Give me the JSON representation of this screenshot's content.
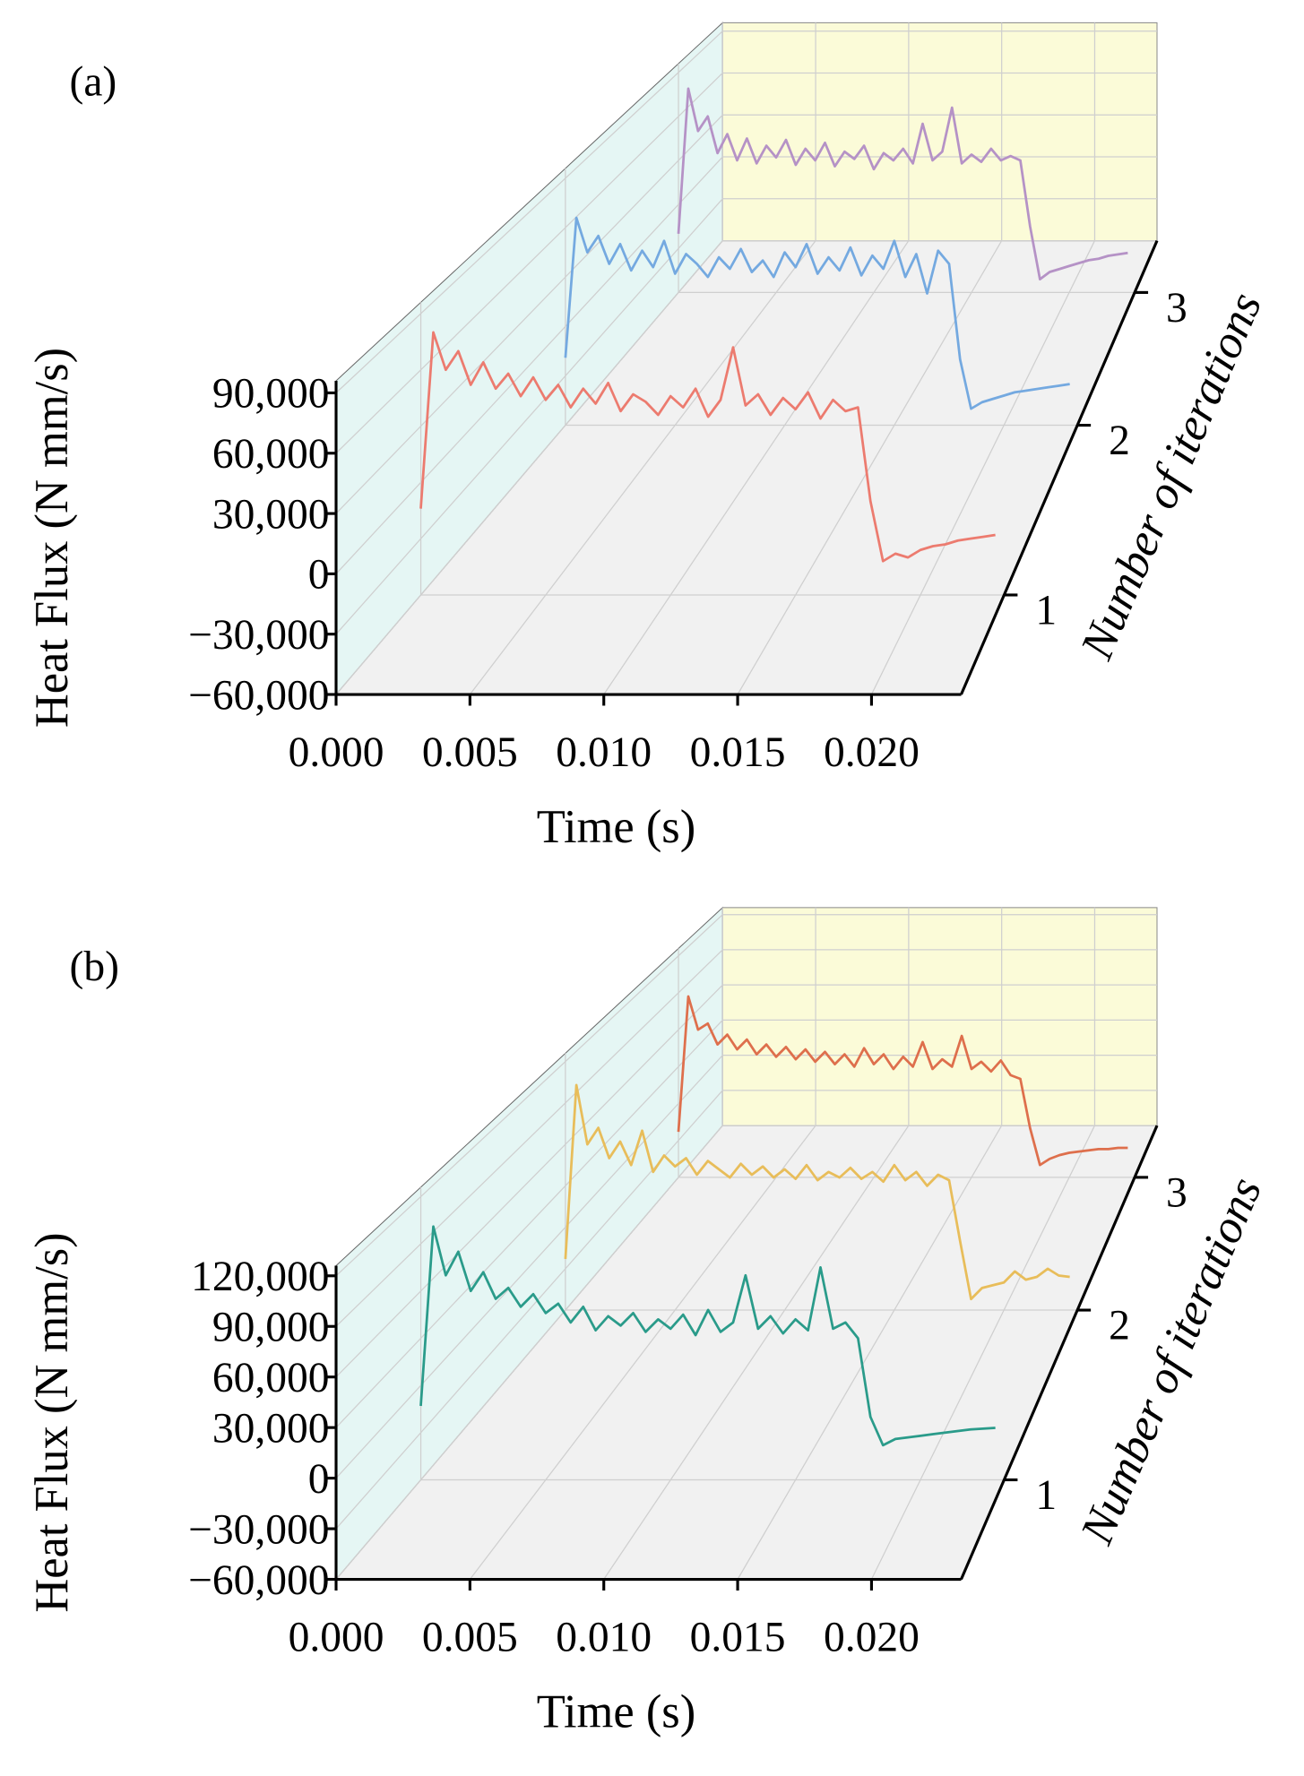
{
  "chart_data": [
    {
      "type": "line3d",
      "panel_label": "(a)",
      "ylabel": "Heat Flux (N mm/s)",
      "xlabel": "Time (s)",
      "zlabel": "Number of iterations",
      "x": [
        0,
        0.0005,
        0.001,
        0.0015,
        0.002,
        0.0025,
        0.003,
        0.0035,
        0.004,
        0.0045,
        0.005,
        0.0055,
        0.006,
        0.0065,
        0.007,
        0.0075,
        0.008,
        0.0085,
        0.009,
        0.0095,
        0.01,
        0.0105,
        0.011,
        0.0115,
        0.012,
        0.0125,
        0.013,
        0.0135,
        0.014,
        0.0145,
        0.015,
        0.0155,
        0.016,
        0.0165,
        0.017,
        0.0175,
        0.018,
        0.0185,
        0.019,
        0.0195,
        0.02,
        0.0205,
        0.021,
        0.0215,
        0.022,
        0.0225,
        0.023
      ],
      "series": [
        {
          "z": 1,
          "color": "#ec7b6f",
          "values": [
            -14000,
            80000,
            60000,
            70000,
            52000,
            64000,
            50000,
            58000,
            46000,
            56000,
            44000,
            52000,
            40000,
            50000,
            42000,
            53000,
            38000,
            47000,
            43000,
            36000,
            46000,
            40000,
            50000,
            35000,
            44000,
            72000,
            41000,
            47000,
            36000,
            45000,
            39000,
            48000,
            34000,
            44000,
            38000,
            40000,
            -10000,
            -42000,
            -38000,
            -40000,
            -36000,
            -34000,
            -33000,
            -31000,
            -30000,
            -29000,
            -28000
          ]
        },
        {
          "z": 2,
          "color": "#74a9e0",
          "values": [
            -19000,
            66000,
            45000,
            55000,
            38000,
            50000,
            34000,
            46000,
            36000,
            52000,
            32000,
            44000,
            38000,
            30000,
            42000,
            35000,
            47000,
            33000,
            40000,
            30000,
            45000,
            36000,
            50000,
            32000,
            42000,
            34000,
            48000,
            31000,
            43000,
            35000,
            52000,
            30000,
            44000,
            20000,
            46000,
            38000,
            -20000,
            -50000,
            -46000,
            -44000,
            -42000,
            -40000,
            -39000,
            -38000,
            -37000,
            -36000,
            -35000
          ]
        },
        {
          "z": 3,
          "color": "#b592c6",
          "values": [
            -20000,
            79000,
            50000,
            60000,
            35000,
            48000,
            30000,
            45000,
            28000,
            40000,
            32000,
            44000,
            27000,
            38000,
            30000,
            42000,
            26000,
            36000,
            31000,
            40000,
            24000,
            35000,
            30000,
            38000,
            28000,
            55000,
            30000,
            36000,
            66000,
            28000,
            34000,
            29000,
            38000,
            30000,
            33000,
            30000,
            -15000,
            -51000,
            -46000,
            -44000,
            -42000,
            -40000,
            -38000,
            -37000,
            -35000,
            -34000,
            -33000
          ]
        }
      ],
      "xlim": [
        0,
        0.02335
      ],
      "xticks": [
        {
          "value": 0,
          "label": "0.000"
        },
        0.005,
        {
          "value": 0.01,
          "label": "0.010"
        },
        0.015,
        {
          "value": 0.02,
          "label": "0.020"
        }
      ],
      "ylim": [
        -60000,
        96000
      ],
      "yticks": [
        {
          "value": -60000,
          "label": "−60,000"
        },
        {
          "value": -30000,
          "label": "−30,000"
        },
        0,
        {
          "value": 30000,
          "label": "30,000"
        },
        {
          "value": 60000,
          "label": "60,000"
        },
        {
          "value": 90000,
          "label": "90,000"
        }
      ],
      "zlim": [
        0.52,
        3.46
      ],
      "zticks": [
        1,
        2,
        3
      ],
      "grid": true
    },
    {
      "type": "line3d",
      "panel_label": "(b)",
      "ylabel": "Heat Flux (N mm/s)",
      "xlabel": "Time (s)",
      "zlabel": "Number of iterations",
      "x": [
        0,
        0.0005,
        0.001,
        0.0015,
        0.002,
        0.0025,
        0.003,
        0.0035,
        0.004,
        0.0045,
        0.005,
        0.0055,
        0.006,
        0.0065,
        0.007,
        0.0075,
        0.008,
        0.0085,
        0.009,
        0.0095,
        0.01,
        0.0105,
        0.011,
        0.0115,
        0.012,
        0.0125,
        0.013,
        0.0135,
        0.014,
        0.0145,
        0.015,
        0.0155,
        0.016,
        0.0165,
        0.017,
        0.0175,
        0.018,
        0.0185,
        0.019,
        0.0195,
        0.02,
        0.0205,
        0.021,
        0.0215,
        0.022,
        0.0225,
        0.023
      ],
      "series": [
        {
          "z": 1,
          "color": "#2a9b8a",
          "values": [
            -13000,
            101000,
            70000,
            85000,
            60000,
            72000,
            55000,
            62000,
            50000,
            58000,
            46000,
            52000,
            40000,
            50000,
            35000,
            44000,
            38000,
            46000,
            34000,
            42000,
            36000,
            45000,
            32000,
            48000,
            34000,
            40000,
            70000,
            36000,
            44000,
            33000,
            42000,
            35000,
            75000,
            36000,
            40000,
            30000,
            -20000,
            -38000,
            -34000,
            -33000,
            -32000,
            -31000,
            -30000,
            -29000,
            -28000,
            -27500,
            -27000
          ]
        },
        {
          "z": 2,
          "color": "#e8bd5a",
          "values": [
            -23000,
            103000,
            60000,
            72000,
            50000,
            62000,
            45000,
            70000,
            40000,
            52000,
            44000,
            50000,
            38000,
            48000,
            42000,
            36000,
            46000,
            38000,
            44000,
            36000,
            42000,
            35000,
            45000,
            34000,
            40000,
            36000,
            43000,
            35000,
            40000,
            33000,
            45000,
            34000,
            40000,
            30000,
            38000,
            34000,
            -10000,
            -52000,
            -44000,
            -42000,
            -40000,
            -32000,
            -38000,
            -36000,
            -30000,
            -35000,
            -36000
          ]
        },
        {
          "z": 3,
          "color": "#de6f4c",
          "values": [
            -23000,
            87000,
            60000,
            65000,
            48000,
            56000,
            44000,
            52000,
            40000,
            48000,
            38000,
            46000,
            36000,
            44000,
            34000,
            42000,
            32000,
            40000,
            30000,
            45000,
            32000,
            40000,
            28000,
            38000,
            30000,
            50000,
            28000,
            36000,
            30000,
            55000,
            28000,
            34000,
            26000,
            35000,
            23000,
            20000,
            -20000,
            -50000,
            -45000,
            -42000,
            -40000,
            -39000,
            -38000,
            -37000,
            -37000,
            -36000,
            -36000
          ]
        }
      ],
      "xlim": [
        0,
        0.02335
      ],
      "xticks": [
        {
          "value": 0,
          "label": "0.000"
        },
        0.005,
        {
          "value": 0.01,
          "label": "0.010"
        },
        0.015,
        {
          "value": 0.02,
          "label": "0.020"
        }
      ],
      "ylim": [
        -60000,
        126000
      ],
      "yticks": [
        {
          "value": -60000,
          "label": "−60,000"
        },
        {
          "value": -30000,
          "label": "−30,000"
        },
        0,
        {
          "value": 30000,
          "label": "30,000"
        },
        {
          "value": 60000,
          "label": "60,000"
        },
        {
          "value": 90000,
          "label": "90,000"
        },
        {
          "value": 120000,
          "label": "120,000"
        }
      ],
      "zlim": [
        0.52,
        3.46
      ],
      "zticks": [
        1,
        2,
        3
      ],
      "grid": true
    }
  ]
}
